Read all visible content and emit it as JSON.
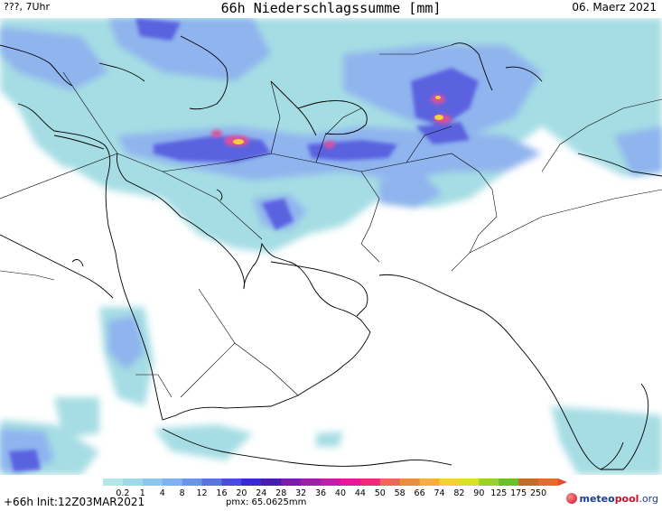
{
  "header": {
    "left_text": "???, 7Uhr",
    "title": "66h Niederschlagssumme [mm]",
    "date": "06. Maerz 2021"
  },
  "legend": {
    "ticks": [
      "0.2",
      "1",
      "4",
      "8",
      "12",
      "16",
      "20",
      "24",
      "28",
      "32",
      "36",
      "40",
      "44",
      "50",
      "58",
      "66",
      "74",
      "82",
      "90",
      "125",
      "175",
      "250"
    ],
    "colors": [
      "#b4e6e8",
      "#9fd8e6",
      "#8cc8ee",
      "#7fb0f0",
      "#6a94ee",
      "#5a72e8",
      "#4a4ae0",
      "#3a2ad0",
      "#4a1ab8",
      "#7a1ab8",
      "#a21ab0",
      "#c81aa8",
      "#e41a9a",
      "#f02a7a",
      "#f0665a",
      "#f08c3a",
      "#f4b03a",
      "#f4d03a",
      "#d8e02a",
      "#9cd02a",
      "#6cc020",
      "#c86a20",
      "#e86a2a"
    ]
  },
  "footer": {
    "run_info": "+66h Init:12Z03MAR2021",
    "pmax": "pmx: 65.0625mm",
    "brand_prefix": "meteo",
    "brand_mid": "pool",
    "brand_suffix": ".org"
  },
  "colors": {
    "precip_light": "#a6dde4",
    "precip_med": "#8fb4ee",
    "precip_heavy": "#5a62e0",
    "precip_extreme": "#e0509a",
    "brand_red": "#c8102e",
    "brand_blue": "#1b3f8f"
  }
}
